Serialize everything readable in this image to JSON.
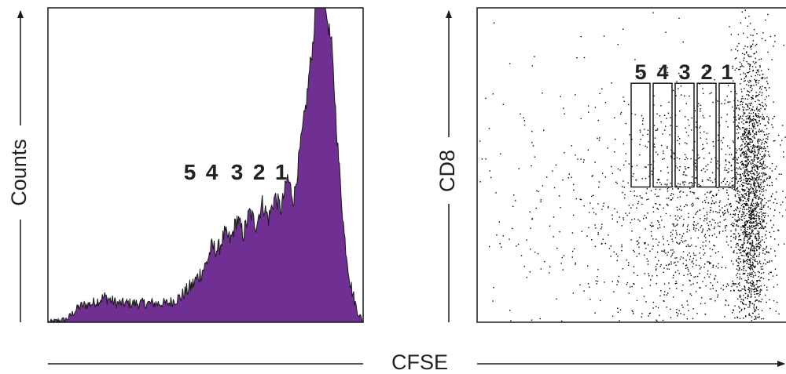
{
  "colors": {
    "histogram_fill": "#6f2f93",
    "histogram_outline": "#1a1a1a",
    "dots": "#000000",
    "frame": "#1a1a1a",
    "background": "#ffffff"
  },
  "shared_xlabel": "CFSE",
  "chart_data": [
    {
      "type": "area",
      "panel": "histogram",
      "ylabel": "Counts",
      "xlabel": "CFSE",
      "xlim": [
        0,
        100
      ],
      "ylim": [
        0,
        100
      ],
      "grid": false,
      "x": [
        0,
        6,
        10,
        14,
        18,
        22,
        26,
        30,
        34,
        38,
        42,
        46,
        50,
        52,
        54,
        56,
        58,
        60,
        62,
        64,
        66,
        68,
        70,
        72,
        74,
        76,
        78,
        80,
        82,
        83,
        84,
        85,
        86,
        87,
        88,
        90,
        92,
        94,
        96,
        98,
        100
      ],
      "y": [
        0,
        1,
        5,
        6,
        8,
        6,
        6,
        6,
        6,
        6,
        8,
        12,
        18,
        24,
        23,
        28,
        26,
        33,
        28,
        35,
        31,
        38,
        33,
        40,
        36,
        46,
        39,
        55,
        70,
        80,
        88,
        100,
        100,
        100,
        100,
        88,
        55,
        28,
        12,
        4,
        0
      ],
      "peaks": [
        {
          "label": "5",
          "x": 45
        },
        {
          "label": "4",
          "x": 52
        },
        {
          "label": "3",
          "x": 60
        },
        {
          "label": "2",
          "x": 67
        },
        {
          "label": "1",
          "x": 74
        }
      ]
    },
    {
      "type": "scatter",
      "panel": "dot-plot",
      "ylabel": "CD8",
      "xlabel": "CFSE",
      "xlim": [
        0,
        100
      ],
      "ylim": [
        0,
        100
      ],
      "grid": false,
      "clusters": [
        {
          "name": "undivided",
          "cx": 87,
          "cy": 40,
          "sx": 3,
          "sy": 25,
          "n": 1800
        },
        {
          "name": "dividing",
          "cx": 70,
          "cy": 35,
          "sx": 14,
          "sy": 20,
          "n": 1100
        },
        {
          "name": "background",
          "cx": 35,
          "cy": 35,
          "sx": 25,
          "sy": 25,
          "n": 350
        }
      ],
      "gates": [
        {
          "label": "5",
          "x": [
            49,
            55
          ],
          "y": [
            43,
            76
          ]
        },
        {
          "label": "4",
          "x": [
            56,
            62
          ],
          "y": [
            43,
            76
          ]
        },
        {
          "label": "3",
          "x": [
            63,
            69
          ],
          "y": [
            43,
            76
          ]
        },
        {
          "label": "2",
          "x": [
            70,
            76
          ],
          "y": [
            43,
            76
          ]
        },
        {
          "label": "1",
          "x": [
            77,
            82
          ],
          "y": [
            43,
            76
          ]
        }
      ]
    }
  ]
}
